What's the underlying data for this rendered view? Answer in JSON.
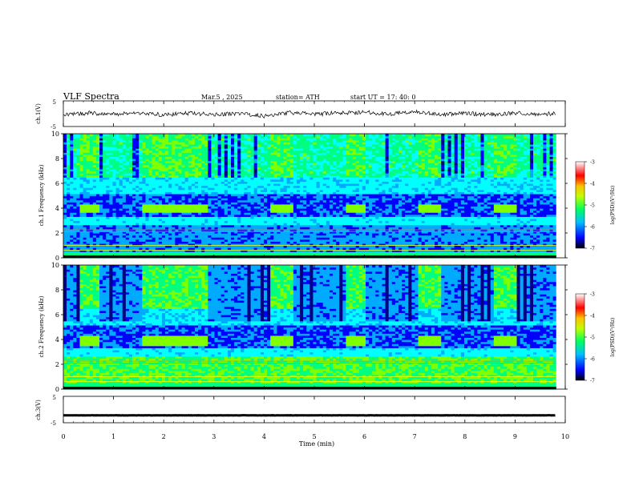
{
  "header": {
    "title": "VLF  Spectra",
    "date": "Mar.5  , 2025",
    "station": "station= ATH",
    "start": "start  UT  =   17: 40: 0"
  },
  "chart_data": [
    {
      "type": "line",
      "name": "ch1-waveform",
      "ylabel": "ch.1(V)",
      "ylim": [
        -5,
        5
      ],
      "yticks": [
        "5",
        "-5"
      ],
      "xlim": [
        0,
        10
      ],
      "x_minutes": [
        0,
        0.5,
        1,
        1.5,
        2,
        2.5,
        3,
        3.5,
        4,
        4.5,
        5,
        5.5,
        6,
        6.5,
        7,
        7.5,
        8,
        8.5,
        9,
        9.5,
        9.8
      ],
      "y_volts": [
        -0.6,
        0.3,
        -0.2,
        0.4,
        -0.5,
        0.2,
        -0.3,
        0.1,
        -0.9,
        0.4,
        -0.2,
        0.3,
        0.6,
        -0.1,
        0.8,
        -0.3,
        0.2,
        -0.4,
        0.3,
        -0.2,
        0.1
      ]
    },
    {
      "type": "heatmap",
      "name": "ch1-spectrogram",
      "ylabel": "ch.1 Frequency  (kHz)",
      "ylim": [
        0,
        10
      ],
      "yticks": [
        "0",
        "2",
        "4",
        "6",
        "8",
        "10"
      ],
      "xlim": [
        0,
        10
      ],
      "colorbar": {
        "label": "log(PSD)(V²/Hz)",
        "range": [
          -7,
          -3
        ],
        "ticks": [
          "-3",
          "-4",
          "-5",
          "-6",
          "-7"
        ]
      },
      "signal_bursts_min": [
        [
          0.35,
          0.7
        ],
        [
          1.6,
          2.9
        ],
        [
          4.15,
          4.6
        ],
        [
          5.6,
          6.0
        ],
        [
          7.1,
          7.55
        ],
        [
          8.55,
          9.05
        ]
      ],
      "burst_band_khz": [
        3.6,
        4.4
      ]
    },
    {
      "type": "heatmap",
      "name": "ch2-spectrogram",
      "ylabel": "ch.2 Frequency  (kHz)",
      "ylim": [
        0,
        10
      ],
      "yticks": [
        "0",
        "2",
        "4",
        "6",
        "8",
        "10"
      ],
      "xlim": [
        0,
        10
      ],
      "colorbar": {
        "label": "log(PSD)(V²/Hz)",
        "range": [
          -7,
          -3
        ],
        "ticks": [
          "-3",
          "-4",
          "-5",
          "-6",
          "-7"
        ]
      },
      "signal_bursts_min": [
        [
          0.35,
          0.7
        ],
        [
          1.6,
          2.9
        ],
        [
          4.15,
          4.6
        ],
        [
          5.6,
          6.0
        ],
        [
          7.1,
          7.55
        ],
        [
          8.55,
          9.05
        ]
      ],
      "burst_band_khz": [
        3.5,
        4.3
      ]
    },
    {
      "type": "line",
      "name": "ch3-waveform",
      "ylabel": "ch.3(V)",
      "ylim": [
        -5,
        5
      ],
      "yticks": [
        "5",
        "-5"
      ],
      "xlim": [
        0,
        10
      ],
      "x_minutes": [
        0,
        9.8
      ],
      "y_volts": [
        -2.2,
        -2.2
      ]
    }
  ],
  "xaxis": {
    "label": "Time  (min)",
    "ticks": [
      "0",
      "1",
      "2",
      "3",
      "4",
      "5",
      "6",
      "7",
      "8",
      "9",
      "10"
    ]
  },
  "colors": {
    "colormap": [
      "#000080",
      "#0000ff",
      "#00aaff",
      "#00ffff",
      "#00ff80",
      "#80ff00",
      "#ffff00",
      "#ff8000",
      "#ff0000",
      "#ffffff"
    ],
    "trace": "#000000"
  }
}
